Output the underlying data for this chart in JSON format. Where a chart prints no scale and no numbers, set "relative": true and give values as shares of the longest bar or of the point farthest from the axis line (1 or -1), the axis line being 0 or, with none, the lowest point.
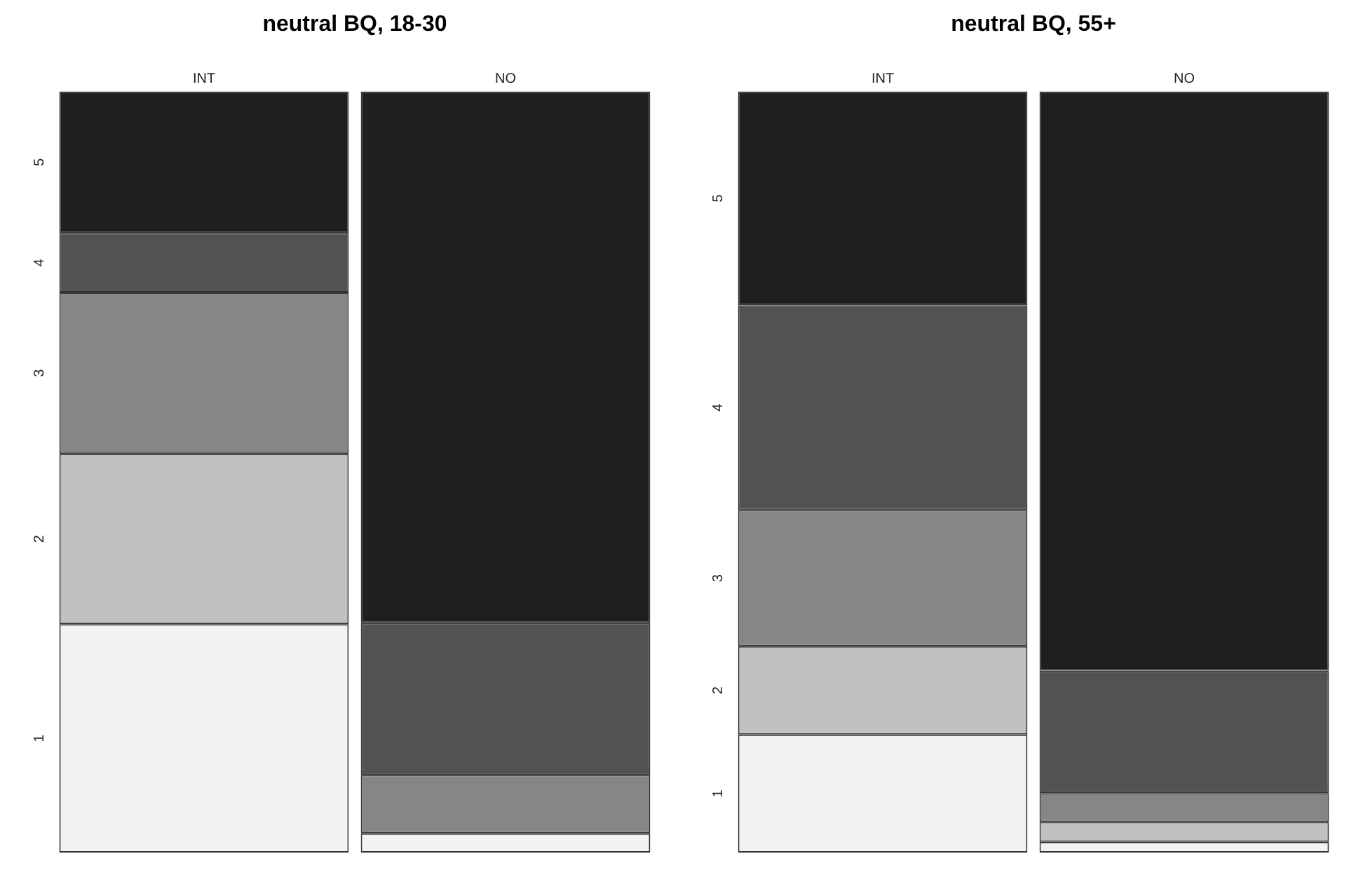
{
  "chart_data": [
    {
      "type": "bar",
      "title": "neutral BQ, 18-30",
      "categories": [
        "INT",
        "NO"
      ],
      "stacked": true,
      "relative": true,
      "grid": false,
      "legend": false,
      "series": [
        {
          "name": "1",
          "color": "#f2f2f2",
          "values": [
            0.3,
            0.025
          ]
        },
        {
          "name": "2",
          "color": "#c1c1c1",
          "values": [
            0.224,
            0
          ]
        },
        {
          "name": "3",
          "color": "#868686",
          "values": [
            0.212,
            0.077
          ]
        },
        {
          "name": "4",
          "color": "#525252",
          "values": [
            0.078,
            0.2
          ]
        },
        {
          "name": "5",
          "color": "#1f1f1f",
          "values": [
            0.186,
            0.698
          ]
        }
      ]
    },
    {
      "type": "bar",
      "title": "neutral BQ, 55+",
      "categories": [
        "INT",
        "NO"
      ],
      "stacked": true,
      "relative": true,
      "grid": false,
      "legend": false,
      "series": [
        {
          "name": "1",
          "color": "#f2f2f2",
          "values": [
            0.155,
            0.014
          ]
        },
        {
          "name": "2",
          "color": "#c1c1c1",
          "values": [
            0.116,
            0.026
          ]
        },
        {
          "name": "3",
          "color": "#868686",
          "values": [
            0.179,
            0.038
          ]
        },
        {
          "name": "4",
          "color": "#525252",
          "values": [
            0.269,
            0.161
          ]
        },
        {
          "name": "5",
          "color": "#1f1f1f",
          "values": [
            0.281,
            0.761
          ]
        }
      ]
    }
  ]
}
